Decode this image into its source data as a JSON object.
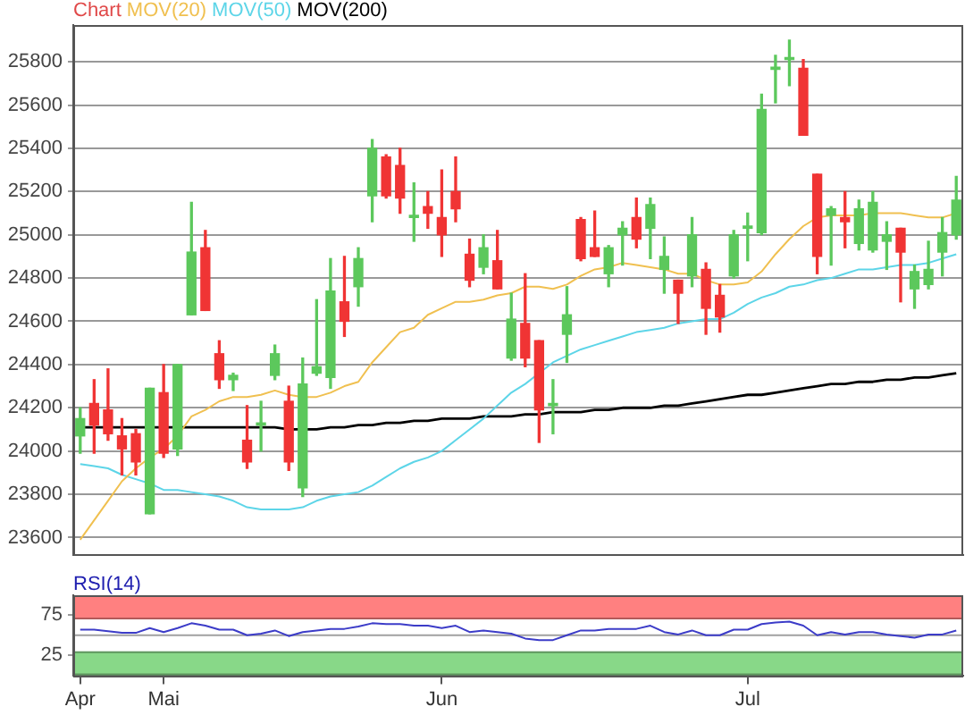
{
  "chart_data": [
    {
      "type": "candlestick",
      "title": "Chart",
      "categories": [
        null,
        null,
        null,
        null,
        null,
        null,
        null,
        null,
        null,
        null,
        null,
        null,
        null,
        null,
        null,
        null,
        null,
        null,
        null,
        null,
        null,
        null,
        null,
        null,
        null,
        null,
        null,
        null,
        null,
        null,
        null,
        null,
        null,
        null,
        null,
        null,
        null,
        null,
        null,
        null,
        null,
        null,
        null,
        null,
        null,
        null,
        null,
        null,
        null,
        null,
        null,
        null,
        null,
        null,
        null,
        null,
        null,
        null,
        null,
        null,
        null,
        null,
        null,
        null
      ],
      "ohlc": [
        [
          24070,
          24200,
          23990,
          24150
        ],
        [
          24220,
          24330,
          23990,
          24120
        ],
        [
          24190,
          24380,
          24050,
          24080
        ],
        [
          24070,
          24150,
          23890,
          24010
        ],
        [
          24080,
          24100,
          23890,
          23950
        ],
        [
          23710,
          24290,
          23710,
          24290
        ],
        [
          24270,
          24400,
          23970,
          23990
        ],
        [
          24010,
          24400,
          23980,
          24400
        ],
        [
          24630,
          25150,
          24630,
          24920
        ],
        [
          24940,
          25020,
          24650,
          24650
        ],
        [
          24450,
          24510,
          24290,
          24330
        ],
        [
          24330,
          24360,
          24280,
          24350
        ],
        [
          24050,
          24210,
          23920,
          23950
        ],
        [
          24120,
          24230,
          24000,
          24130
        ],
        [
          24350,
          24490,
          24330,
          24450
        ],
        [
          24230,
          24300,
          23910,
          23950
        ],
        [
          23830,
          24430,
          23790,
          24310
        ],
        [
          24360,
          24700,
          24350,
          24390
        ],
        [
          24340,
          24890,
          24290,
          24740
        ],
        [
          24690,
          24900,
          24530,
          24600
        ],
        [
          24760,
          24940,
          24670,
          24890
        ],
        [
          25180,
          25440,
          25060,
          25400
        ],
        [
          25360,
          25370,
          25170,
          25180
        ],
        [
          25320,
          25400,
          25100,
          25170
        ],
        [
          25080,
          25240,
          24970,
          25090
        ],
        [
          25130,
          25200,
          25030,
          25100
        ],
        [
          25080,
          25300,
          24900,
          25000
        ],
        [
          25200,
          25360,
          25060,
          25120
        ],
        [
          24910,
          24980,
          24760,
          24790
        ],
        [
          24850,
          25000,
          24820,
          24940
        ],
        [
          24880,
          25020,
          24750,
          24750
        ],
        [
          24430,
          24730,
          24420,
          24610
        ],
        [
          24590,
          24820,
          24390,
          24430
        ],
        [
          24510,
          24510,
          24040,
          24190
        ],
        [
          24210,
          24330,
          24080,
          24220
        ],
        [
          24540,
          24760,
          24410,
          24630
        ],
        [
          25070,
          25080,
          24880,
          24890
        ],
        [
          24940,
          25110,
          24900,
          24900
        ],
        [
          24820,
          24950,
          24760,
          24940
        ],
        [
          25000,
          25060,
          24860,
          25030
        ],
        [
          25080,
          25170,
          24940,
          24980
        ],
        [
          25030,
          25170,
          24890,
          25140
        ],
        [
          24840,
          24990,
          24730,
          24900
        ],
        [
          24790,
          24790,
          24590,
          24730
        ],
        [
          24810,
          25080,
          24760,
          25000
        ],
        [
          24840,
          24870,
          24540,
          24660
        ],
        [
          24720,
          24770,
          24550,
          24620
        ],
        [
          24810,
          25020,
          24800,
          25000
        ],
        [
          25030,
          25100,
          24880,
          25040
        ],
        [
          25010,
          25650,
          25000,
          25580
        ],
        [
          25765,
          25830,
          25610,
          25775
        ],
        [
          25810,
          25900,
          25690,
          25820
        ],
        [
          25770,
          25810,
          25460,
          25460
        ],
        [
          25280,
          25280,
          24820,
          24900
        ],
        [
          25090,
          25130,
          24860,
          25120
        ],
        [
          25080,
          25200,
          24940,
          25060
        ],
        [
          24960,
          25160,
          24930,
          25120
        ],
        [
          24930,
          25200,
          24920,
          25150
        ],
        [
          24970,
          25060,
          24840,
          25000
        ],
        [
          25030,
          25030,
          24690,
          24920
        ],
        [
          24750,
          24860,
          24660,
          24830
        ],
        [
          24770,
          24970,
          24750,
          24840
        ],
        [
          24920,
          25080,
          24810,
          25010
        ],
        [
          25000,
          25270,
          24980,
          25160
        ]
      ],
      "colors": [
        "#5cc85c",
        "#f03434",
        "#f03434",
        "#f03434",
        "#f03434",
        "#5cc85c",
        "#f03434",
        "#5cc85c",
        "#5cc85c",
        "#f03434",
        "#f03434",
        "#5cc85c",
        "#f03434",
        "#5cc85c",
        "#5cc85c",
        "#f03434",
        "#5cc85c",
        "#5cc85c",
        "#5cc85c",
        "#f03434",
        "#5cc85c",
        "#5cc85c",
        "#f03434",
        "#f03434",
        "#5cc85c",
        "#f03434",
        "#f03434",
        "#f03434",
        "#f03434",
        "#5cc85c",
        "#f03434",
        "#5cc85c",
        "#f03434",
        "#f03434",
        "#5cc85c",
        "#5cc85c",
        "#f03434",
        "#f03434",
        "#5cc85c",
        "#5cc85c",
        "#f03434",
        "#5cc85c",
        "#5cc85c",
        "#f03434",
        "#5cc85c",
        "#f03434",
        "#f03434",
        "#5cc85c",
        "#5cc85c",
        "#5cc85c",
        "#5cc85c",
        "#5cc85c",
        "#f03434",
        "#f03434",
        "#5cc85c",
        "#f03434",
        "#5cc85c",
        "#5cc85c",
        "#5cc85c",
        "#f03434",
        "#5cc85c",
        "#5cc85c",
        "#5cc85c",
        "#5cc85c"
      ],
      "series": [
        {
          "type": "line",
          "name": "MOV(20)",
          "color": "#f0c050",
          "values": [
            23590,
            23680,
            23770,
            23860,
            23920,
            23970,
            24010,
            24070,
            24160,
            24190,
            24230,
            24250,
            24250,
            24260,
            24280,
            24260,
            24250,
            24250,
            24270,
            24300,
            24320,
            24410,
            24480,
            24550,
            24570,
            24630,
            24660,
            24690,
            24690,
            24700,
            24720,
            24730,
            24760,
            24760,
            24750,
            24770,
            24810,
            24840,
            24850,
            24870,
            24860,
            24850,
            24840,
            24820,
            24820,
            24790,
            24770,
            24770,
            24780,
            24830,
            24910,
            24980,
            25040,
            25080,
            25090,
            25090,
            25090,
            25100,
            25100,
            25100,
            25090,
            25080,
            25080,
            25100
          ]
        },
        {
          "type": "line",
          "name": "MOV(50)",
          "color": "#5dd5e8",
          "values": [
            23940,
            23930,
            23920,
            23890,
            23870,
            23850,
            23820,
            23820,
            23810,
            23800,
            23790,
            23770,
            23740,
            23730,
            23730,
            23730,
            23740,
            23770,
            23790,
            23800,
            23810,
            23840,
            23880,
            23920,
            23950,
            23970,
            24000,
            24050,
            24100,
            24150,
            24210,
            24270,
            24310,
            24360,
            24410,
            24440,
            24470,
            24490,
            24510,
            24530,
            24550,
            24560,
            24570,
            24590,
            24600,
            24610,
            24610,
            24640,
            24680,
            24710,
            24730,
            24760,
            24770,
            24790,
            24800,
            24820,
            24840,
            24840,
            24850,
            24860,
            24860,
            24870,
            24890,
            24910
          ]
        },
        {
          "type": "line",
          "name": "MOV(200)",
          "color": "#000000",
          "values": [
            24110,
            24110,
            24110,
            24110,
            24110,
            24110,
            24110,
            24110,
            24110,
            24110,
            24110,
            24110,
            24110,
            24110,
            24110,
            24100,
            24100,
            24100,
            24110,
            24110,
            24120,
            24120,
            24130,
            24130,
            24140,
            24140,
            24150,
            24150,
            24150,
            24160,
            24160,
            24160,
            24170,
            24170,
            24180,
            24180,
            24180,
            24190,
            24190,
            24200,
            24200,
            24200,
            24210,
            24210,
            24220,
            24230,
            24240,
            24250,
            24260,
            24260,
            24270,
            24280,
            24290,
            24300,
            24310,
            24310,
            24320,
            24320,
            24330,
            24330,
            24340,
            24340,
            24350,
            24360
          ]
        }
      ],
      "ylim": [
        23520,
        25970
      ],
      "yticks": [
        23600,
        23800,
        24000,
        24200,
        24400,
        24600,
        24800,
        25000,
        25200,
        25400,
        25600,
        25800
      ],
      "grid": "y",
      "legend": "top left",
      "tick_labels": "y"
    },
    {
      "type": "line",
      "title": "RSI(14)",
      "categories": [
        "Apr",
        null,
        null,
        null,
        null,
        null,
        "Mai",
        null,
        null,
        null,
        null,
        null,
        null,
        null,
        null,
        null,
        null,
        null,
        null,
        null,
        null,
        null,
        null,
        null,
        null,
        null,
        "Jun",
        null,
        null,
        null,
        null,
        null,
        null,
        null,
        null,
        null,
        null,
        null,
        null,
        null,
        null,
        null,
        null,
        null,
        null,
        null,
        null,
        null,
        "Jul",
        null,
        null,
        null,
        null,
        null,
        null,
        null,
        null,
        null,
        null,
        null,
        null,
        null,
        null,
        null
      ],
      "values": [
        57,
        57,
        55,
        53,
        53,
        59,
        54,
        59,
        65,
        62,
        57,
        57,
        50,
        52,
        56,
        49,
        54,
        56,
        58,
        58,
        61,
        65,
        64,
        64,
        62,
        62,
        59,
        62,
        54,
        56,
        54,
        52,
        46,
        44,
        44,
        50,
        56,
        56,
        58,
        58,
        58,
        62,
        54,
        51,
        56,
        50,
        50,
        57,
        57,
        64,
        66,
        67,
        62,
        50,
        54,
        51,
        54,
        54,
        51,
        49,
        47,
        51,
        51,
        56
      ],
      "color": "#3c3cc8",
      "ylim": [
        0,
        100
      ],
      "yticks": [
        25,
        75
      ],
      "bands": [
        {
          "axis": "y",
          "from": 70,
          "to": 100,
          "color": "#ff8080"
        },
        {
          "axis": "y",
          "from": 0,
          "to": 30,
          "color": "#88d888"
        }
      ],
      "ref_lines": [
        {
          "axis": "y",
          "value": 50,
          "color": "#a0a0a0"
        }
      ]
    }
  ]
}
